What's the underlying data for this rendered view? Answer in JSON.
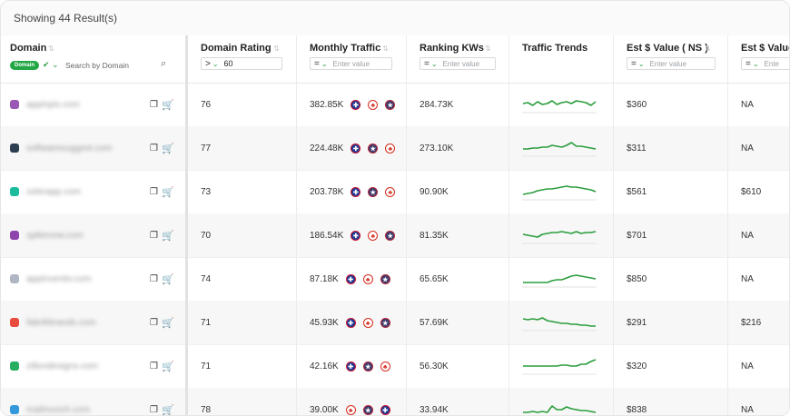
{
  "header": {
    "results_text": "Showing 44 Result(s)"
  },
  "columns": {
    "domain": "Domain",
    "domain_rating": "Domain Rating",
    "monthly_traffic": "Monthly Traffic",
    "ranking_kws": "Ranking KWs",
    "traffic_trends": "Traffic Trends",
    "est_value_ns": "Est $ Value ( NS )",
    "est_value_2": "Est $ Value ("
  },
  "filters": {
    "domain_badge": "Domain",
    "domain_search_placeholder": "Search by Domain",
    "dr_operator": ">",
    "dr_value": "60",
    "traffic_placeholder": "Enter value",
    "kws_placeholder": "Enter value",
    "est_placeholder": "Enter value",
    "est2_placeholder": "Ente"
  },
  "rows": [
    {
      "domain": "appinpix.com",
      "color": "#9b59b6",
      "dr": "76",
      "traffic": "382.85K",
      "flags": [
        "uk",
        "ca",
        "us"
      ],
      "kws": "284.73K",
      "est": "$360",
      "est2": "NA",
      "trend": [
        10,
        11,
        8,
        12,
        9,
        10,
        13,
        9,
        11,
        12,
        10,
        13,
        12,
        11,
        8,
        12
      ]
    },
    {
      "domain": "softwaresuggest.com",
      "color": "#2c3e50",
      "dr": "77",
      "traffic": "224.48K",
      "flags": [
        "uk",
        "us",
        "ca"
      ],
      "kws": "273.10K",
      "est": "$311",
      "est2": "NA",
      "trend": [
        8,
        8,
        9,
        9,
        10,
        10,
        12,
        11,
        10,
        12,
        15,
        11,
        11,
        10,
        9,
        8
      ]
    },
    {
      "domain": "celerapp.com",
      "color": "#1abc9c",
      "dr": "73",
      "traffic": "203.78K",
      "flags": [
        "uk",
        "us",
        "ca"
      ],
      "kws": "90.90K",
      "est": "$561",
      "est2": "$610",
      "trend": [
        6,
        7,
        8,
        10,
        11,
        12,
        12,
        13,
        14,
        15,
        14,
        14,
        13,
        12,
        11,
        9
      ]
    },
    {
      "domain": "spikenow.com",
      "color": "#8e44ad",
      "dr": "70",
      "traffic": "186.54K",
      "flags": [
        "uk",
        "ca",
        "us"
      ],
      "kws": "81.35K",
      "est": "$701",
      "est2": "NA",
      "trend": [
        10,
        9,
        8,
        7,
        10,
        11,
        12,
        12,
        13,
        12,
        11,
        13,
        11,
        12,
        12,
        13
      ]
    },
    {
      "domain": "appinventiv.com",
      "color": "#b0b7c3",
      "dr": "74",
      "traffic": "87.18K",
      "flags": [
        "uk",
        "ca",
        "us"
      ],
      "kws": "65.65K",
      "est": "$850",
      "est2": "NA",
      "trend": [
        5,
        5,
        5,
        5,
        5,
        5,
        7,
        8,
        8,
        10,
        12,
        13,
        12,
        11,
        10,
        9
      ]
    },
    {
      "domain": "fabrikbrands.com",
      "color": "#e74c3c",
      "dr": "71",
      "traffic": "45.93K",
      "flags": [
        "uk",
        "ca",
        "us"
      ],
      "kws": "57.69K",
      "est": "$291",
      "est2": "$216",
      "trend": [
        13,
        12,
        13,
        12,
        14,
        11,
        10,
        9,
        8,
        8,
        7,
        7,
        6,
        6,
        5,
        5
      ]
    },
    {
      "domain": "zillondesigns.com",
      "color": "#27ae60",
      "dr": "71",
      "traffic": "42.16K",
      "flags": [
        "uk",
        "us",
        "ca"
      ],
      "kws": "56.30K",
      "est": "$320",
      "est2": "NA",
      "trend": [
        9,
        9,
        9,
        9,
        9,
        9,
        9,
        9,
        10,
        10,
        9,
        9,
        11,
        11,
        14,
        16
      ]
    },
    {
      "domain": "mailmunch.com",
      "color": "#3498db",
      "dr": "78",
      "traffic": "39.00K",
      "flags": [
        "ca",
        "us",
        "uk"
      ],
      "kws": "33.94K",
      "est": "$838",
      "est2": "NA",
      "trend": [
        6,
        6,
        7,
        6,
        7,
        6,
        13,
        9,
        9,
        12,
        10,
        9,
        8,
        8,
        7,
        6
      ]
    }
  ],
  "colors": {
    "accent": "#22a745",
    "trend_line": "#2a9d3c"
  }
}
